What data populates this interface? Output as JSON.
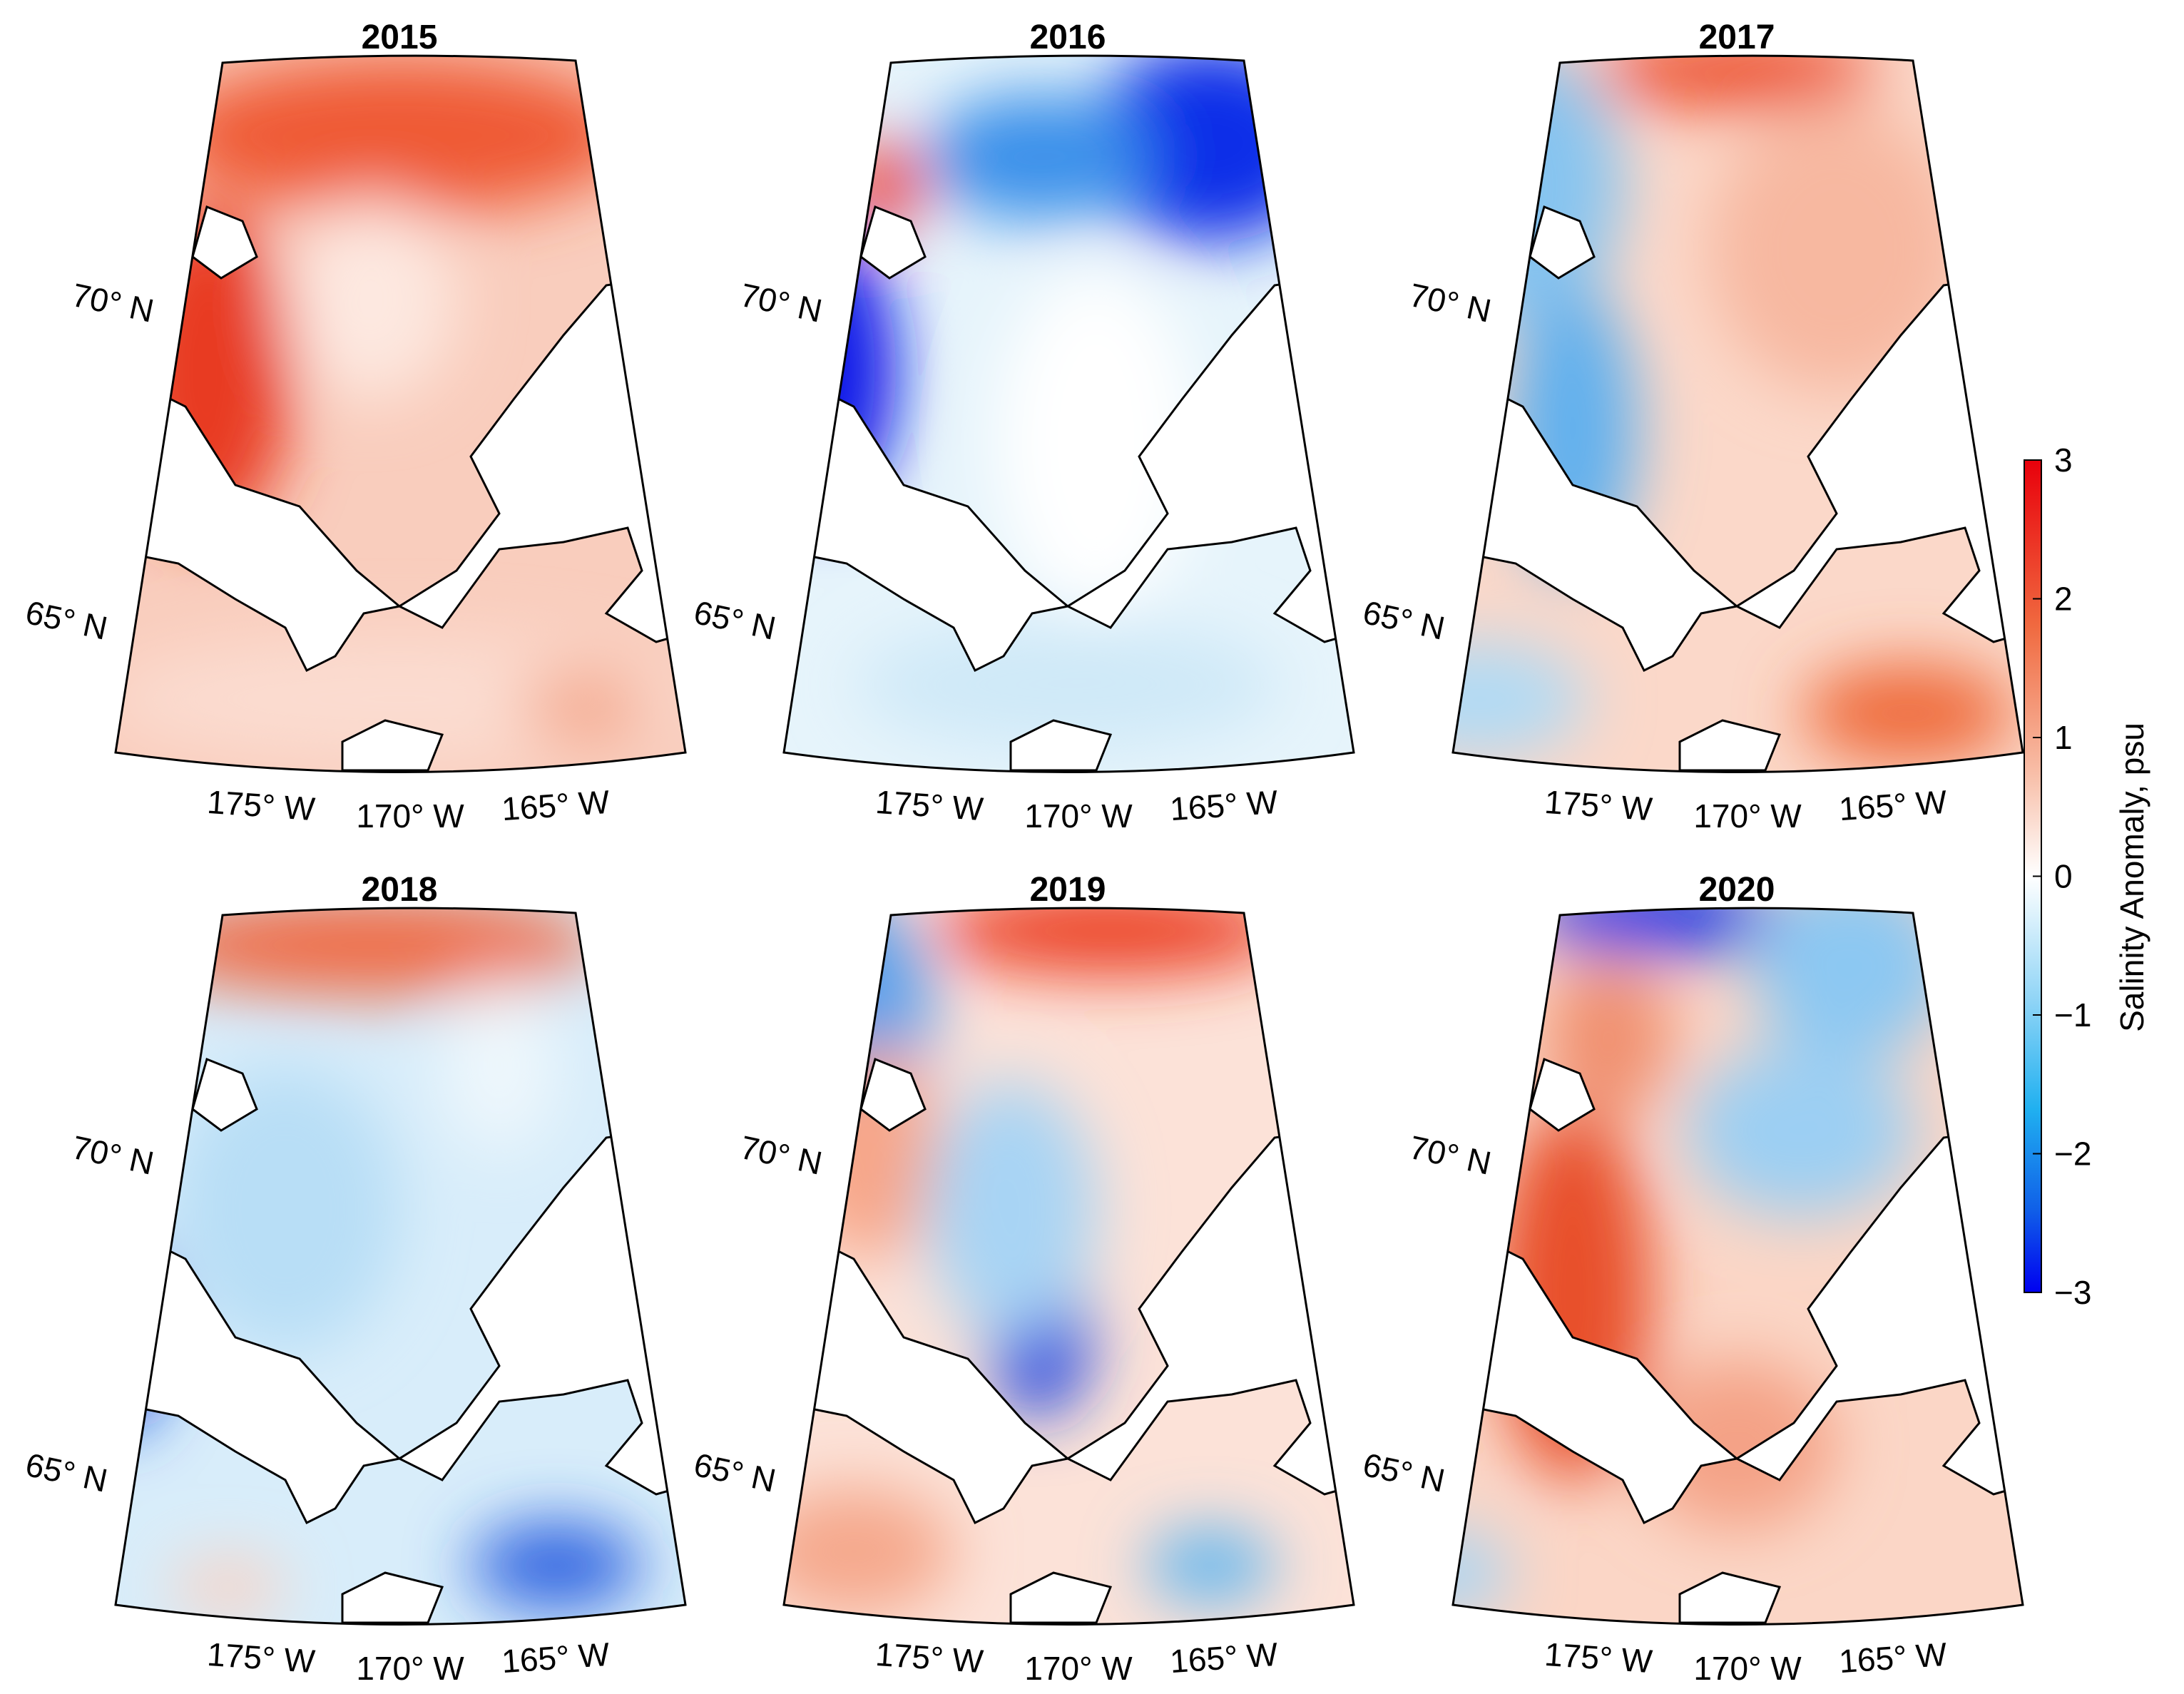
{
  "panels": [
    {
      "title": "2015",
      "lat_labels": [
        "70° N",
        "65° N"
      ],
      "lon_labels": [
        "175° W",
        "170° W",
        "165° W"
      ]
    },
    {
      "title": "2016",
      "lat_labels": [
        "70° N",
        "65° N"
      ],
      "lon_labels": [
        "175° W",
        "170° W",
        "165° W"
      ]
    },
    {
      "title": "2017",
      "lat_labels": [
        "70° N",
        "65° N"
      ],
      "lon_labels": [
        "175° W",
        "170° W",
        "165° W"
      ]
    },
    {
      "title": "2018",
      "lat_labels": [
        "70° N",
        "65° N"
      ],
      "lon_labels": [
        "175° W",
        "170° W",
        "165° W"
      ]
    },
    {
      "title": "2019",
      "lat_labels": [
        "70° N",
        "65° N"
      ],
      "lon_labels": [
        "175° W",
        "170° W",
        "165° W"
      ]
    },
    {
      "title": "2020",
      "lat_labels": [
        "70° N",
        "65° N"
      ],
      "lon_labels": [
        "175° W",
        "170° W",
        "165° W"
      ]
    }
  ],
  "colorbar": {
    "label": "Salinity Anomaly, psu",
    "lim": [
      -3,
      3
    ],
    "ticks": [
      {
        "value": -3,
        "label": "−3"
      },
      {
        "value": -2,
        "label": "−2"
      },
      {
        "value": -1,
        "label": "−1"
      },
      0,
      1,
      2,
      3
    ]
  }
}
